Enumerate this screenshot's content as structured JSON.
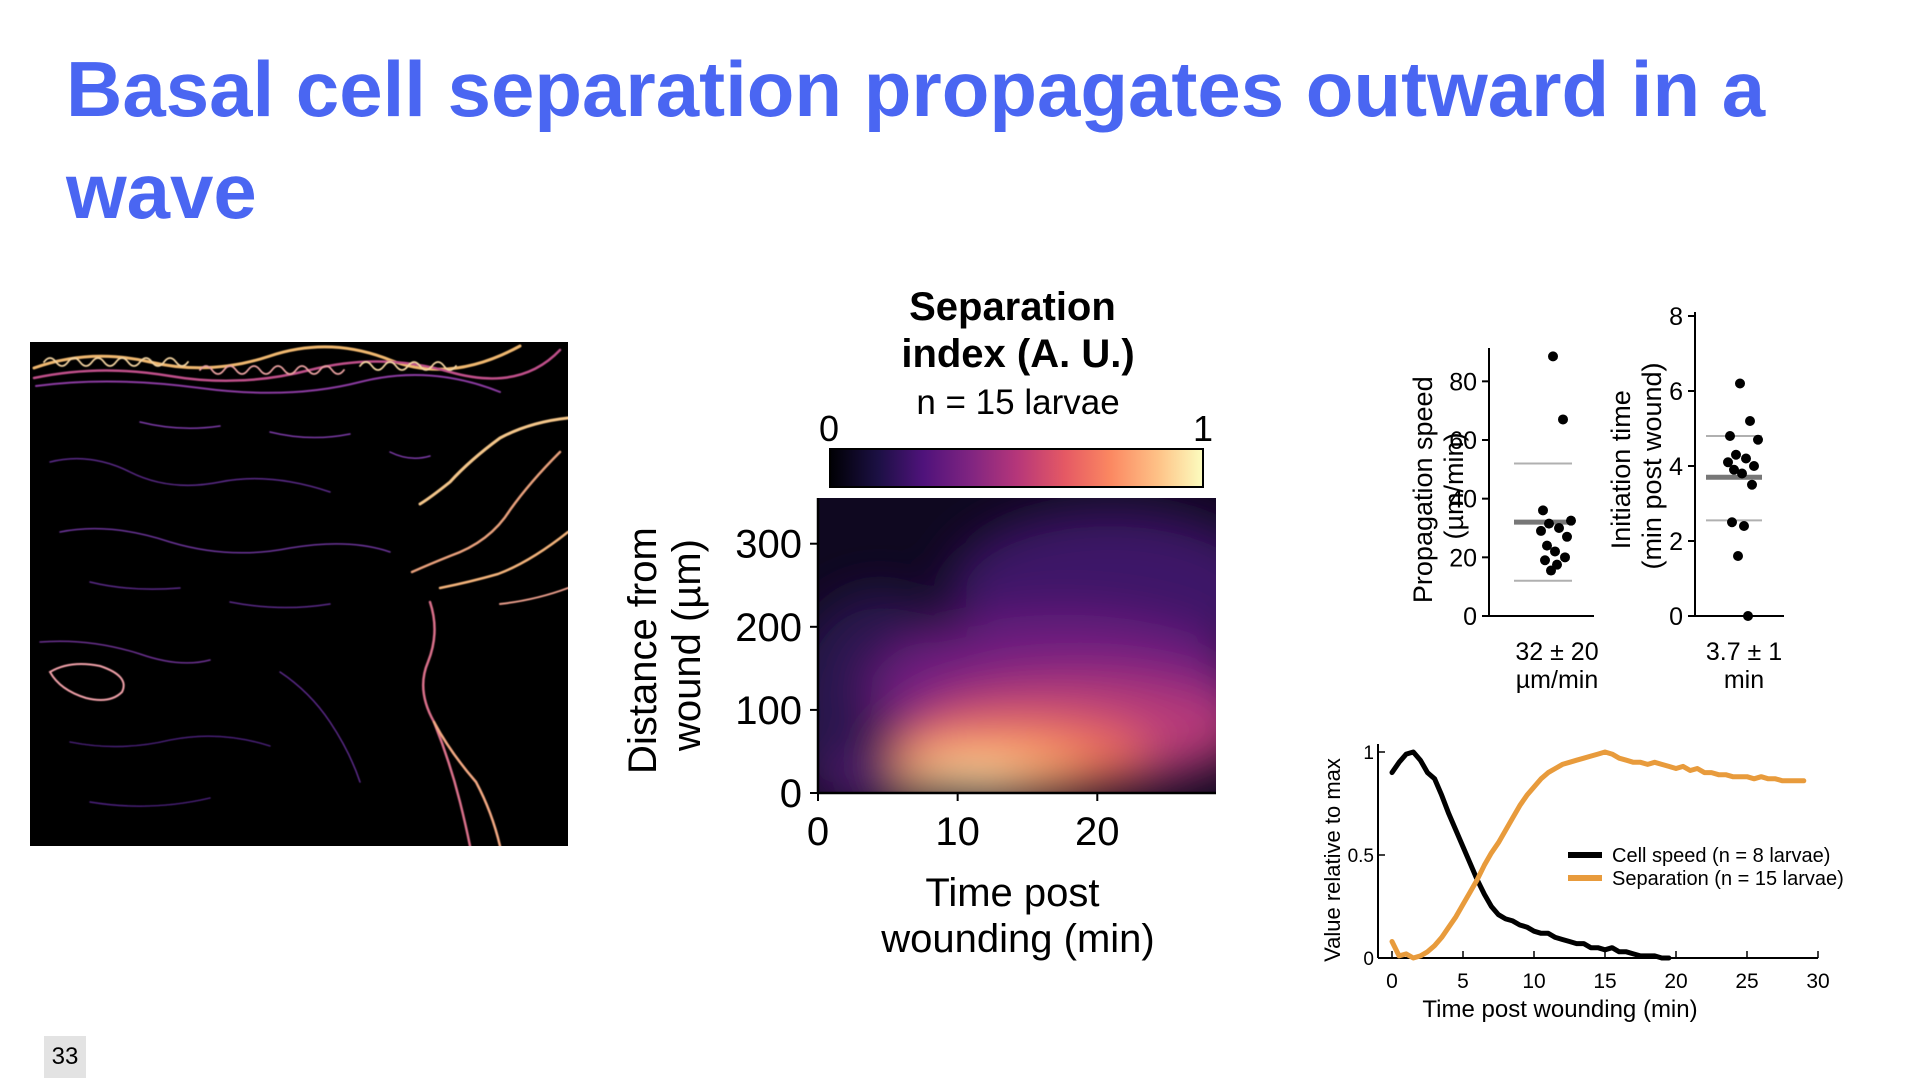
{
  "slide": {
    "title": "Basal cell separation propagates outward in a wave",
    "page_number": "33"
  },
  "micrograph": {
    "image": "fluorescence-micrograph",
    "colormap": "magma"
  },
  "colors": {
    "title": "#4a66f2",
    "cell_speed": "#000000",
    "separation": "#e89b3c",
    "mean_line": "#777777",
    "sd_line": "#b0b0b0"
  },
  "chart_data": [
    {
      "type": "heatmap",
      "title": "Separation index (A. U.)",
      "subtitle": "n = 15 larvae",
      "colorbar": {
        "min_label": "0",
        "max_label": "1",
        "colormap": "magma"
      },
      "xlabel": "Time post wounding (min)",
      "ylabel": "Distance from wound (µm)",
      "xlim": [
        0,
        28.5
      ],
      "ylim": [
        0,
        355
      ],
      "x_ticks": [
        "0",
        "10",
        "20"
      ],
      "y_ticks": [
        "0",
        "100",
        "200",
        "300"
      ],
      "peak": {
        "x": 12,
        "y": 30
      }
    },
    {
      "type": "scatter",
      "ylabel": "Propagation speed (µm/min)",
      "ylim": [
        0,
        90
      ],
      "y_ticks": [
        "0",
        "20",
        "40",
        "60",
        "80"
      ],
      "values": [
        88.5,
        67,
        36,
        32.5,
        31.5,
        30,
        29,
        27,
        24,
        22,
        20,
        19,
        17.5,
        15.5
      ],
      "mean": 32,
      "sd_low": 12,
      "sd_high": 52,
      "summary": "32 ± 20",
      "unit": "µm/min"
    },
    {
      "type": "scatter",
      "ylabel": "Initiation time (min post wound)",
      "ylim": [
        0,
        8
      ],
      "y_ticks": [
        "0",
        "2",
        "4",
        "6",
        "8"
      ],
      "values": [
        6.2,
        5.2,
        4.8,
        4.7,
        4.3,
        4.2,
        4.1,
        4.0,
        3.9,
        3.8,
        3.5,
        2.5,
        2.4,
        1.6,
        0.0
      ],
      "mean": 3.7,
      "sd_low": 2.55,
      "sd_high": 4.8,
      "summary": "3.7 ± 1",
      "unit": "min"
    },
    {
      "type": "line",
      "xlabel": "Time post wounding (min)",
      "ylabel": "Value relative to max",
      "xlim": [
        0,
        30
      ],
      "ylim": [
        0,
        1
      ],
      "x_ticks": [
        "0",
        "5",
        "10",
        "15",
        "20",
        "25",
        "30"
      ],
      "y_ticks": [
        "0",
        "0.5",
        "1"
      ],
      "series": [
        {
          "name": "Cell speed (n = 8 larvae)",
          "x": [
            0,
            0.5,
            1,
            1.5,
            2,
            2.5,
            3,
            3.5,
            4,
            4.5,
            5,
            5.5,
            6,
            6.5,
            7,
            7.5,
            8,
            8.5,
            9,
            9.5,
            10,
            10.5,
            11,
            11.5,
            12,
            12.5,
            13,
            13.5,
            14,
            14.5,
            15,
            15.5,
            16,
            16.5,
            17,
            17.5,
            18,
            18.5,
            19,
            19.5
          ],
          "y": [
            0.9,
            0.95,
            0.99,
            1.0,
            0.96,
            0.9,
            0.87,
            0.79,
            0.7,
            0.62,
            0.54,
            0.46,
            0.38,
            0.31,
            0.25,
            0.21,
            0.19,
            0.18,
            0.16,
            0.15,
            0.13,
            0.12,
            0.12,
            0.1,
            0.09,
            0.08,
            0.07,
            0.07,
            0.05,
            0.05,
            0.04,
            0.05,
            0.03,
            0.03,
            0.02,
            0.01,
            0.01,
            0.01,
            0.0,
            0.0
          ]
        },
        {
          "name": "Separation (n = 15 larvae)",
          "x": [
            0,
            0.5,
            1,
            1.5,
            2,
            2.5,
            3,
            3.5,
            4,
            4.5,
            5,
            5.5,
            6,
            6.5,
            7,
            7.5,
            8,
            8.5,
            9,
            9.5,
            10,
            10.5,
            11,
            11.5,
            12,
            12.5,
            13,
            13.5,
            14,
            14.5,
            15,
            15.5,
            16,
            16.5,
            17,
            17.5,
            18,
            18.5,
            19,
            19.5,
            20,
            20.5,
            21,
            21.5,
            22,
            22.5,
            23,
            23.5,
            24,
            24.5,
            25,
            25.5,
            26,
            26.5,
            27,
            27.5,
            28,
            28.5,
            29
          ],
          "y": [
            0.08,
            0.01,
            0.02,
            0.0,
            0.01,
            0.03,
            0.06,
            0.1,
            0.15,
            0.2,
            0.26,
            0.32,
            0.38,
            0.45,
            0.51,
            0.56,
            0.62,
            0.68,
            0.74,
            0.79,
            0.83,
            0.87,
            0.9,
            0.92,
            0.94,
            0.95,
            0.96,
            0.97,
            0.98,
            0.99,
            1.0,
            0.99,
            0.97,
            0.96,
            0.95,
            0.95,
            0.94,
            0.95,
            0.94,
            0.93,
            0.92,
            0.93,
            0.91,
            0.92,
            0.9,
            0.9,
            0.89,
            0.89,
            0.88,
            0.88,
            0.88,
            0.87,
            0.88,
            0.87,
            0.87,
            0.86,
            0.86,
            0.86,
            0.86
          ]
        }
      ]
    }
  ]
}
